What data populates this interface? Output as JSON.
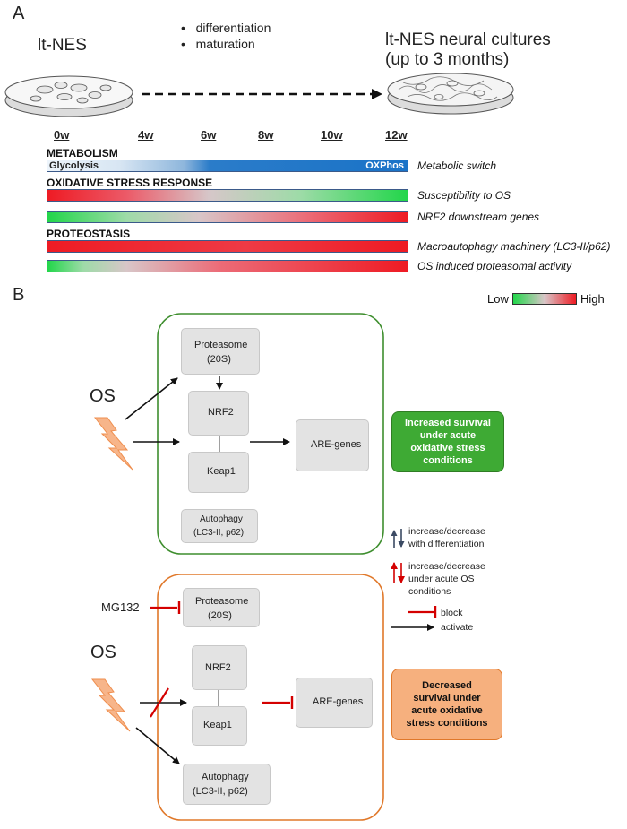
{
  "panel_a": {
    "letter": "A",
    "left_label": "lt-NES",
    "bullets": [
      "differentiation",
      "maturation"
    ],
    "right_label_1": "lt-NES neural cultures",
    "right_label_2": "(up to 3 months)",
    "ticks": [
      "0w",
      "4w",
      "6w",
      "8w",
      "10w",
      "12w"
    ],
    "sections": {
      "metabolism": "METABOLISM",
      "oxidative": "OXIDATIVE STRESS RESPONSE",
      "proteostasis": "PROTEOSTASIS"
    },
    "bar_inline": {
      "left": "Glycolysis",
      "right": "OXPhos"
    },
    "rows": [
      {
        "label": "Metabolic switch"
      },
      {
        "label": "Susceptibility to OS"
      },
      {
        "label": "NRF2 downstream genes"
      },
      {
        "label": "Macroautophagy machinery (LC3-II/p62)"
      },
      {
        "label": "OS induced proteasomal activity"
      }
    ],
    "scale": {
      "low": "Low",
      "high": "High"
    },
    "colors": {
      "low": "#22d64a",
      "high": "#ee1b24",
      "glycolysis": "#e9f2fa",
      "oxphos": "#1a73c8"
    }
  },
  "panel_b": {
    "letter": "B",
    "top": {
      "os": "OS",
      "proteasome": "Proteasome",
      "proteasome_sub": "(20S)",
      "nrf2": "NRF2",
      "keap1": "Keap1",
      "are": "ARE-genes",
      "autophagy": "Autophagy",
      "autophagy_sub": "(LC3-II, p62)",
      "outcome": [
        "Increased survival",
        "under acute",
        "oxidative stress",
        "conditions"
      ],
      "frame_color": "#3e8e2e",
      "outcome_color": "#3eaa34"
    },
    "bottom": {
      "os": "OS",
      "inhibitor": "MG132",
      "proteasome": "Proteasome",
      "proteasome_sub": "(20S)",
      "nrf2": "NRF2",
      "keap1": "Keap1",
      "are": "ARE-genes",
      "autophagy": "Autophagy",
      "autophagy_sub": "(LC3-II, p62)",
      "outcome": [
        "Decreased",
        "survival under",
        "acute oxidative",
        "stress conditions"
      ],
      "frame_color": "#e0782a",
      "outcome_color": "#f6b07e"
    },
    "legend": {
      "diff": [
        "increase/decrease",
        "with differentiation"
      ],
      "os": [
        "increase/decrease",
        "under acute OS",
        "conditions"
      ],
      "block": "block",
      "activate": "activate"
    }
  }
}
